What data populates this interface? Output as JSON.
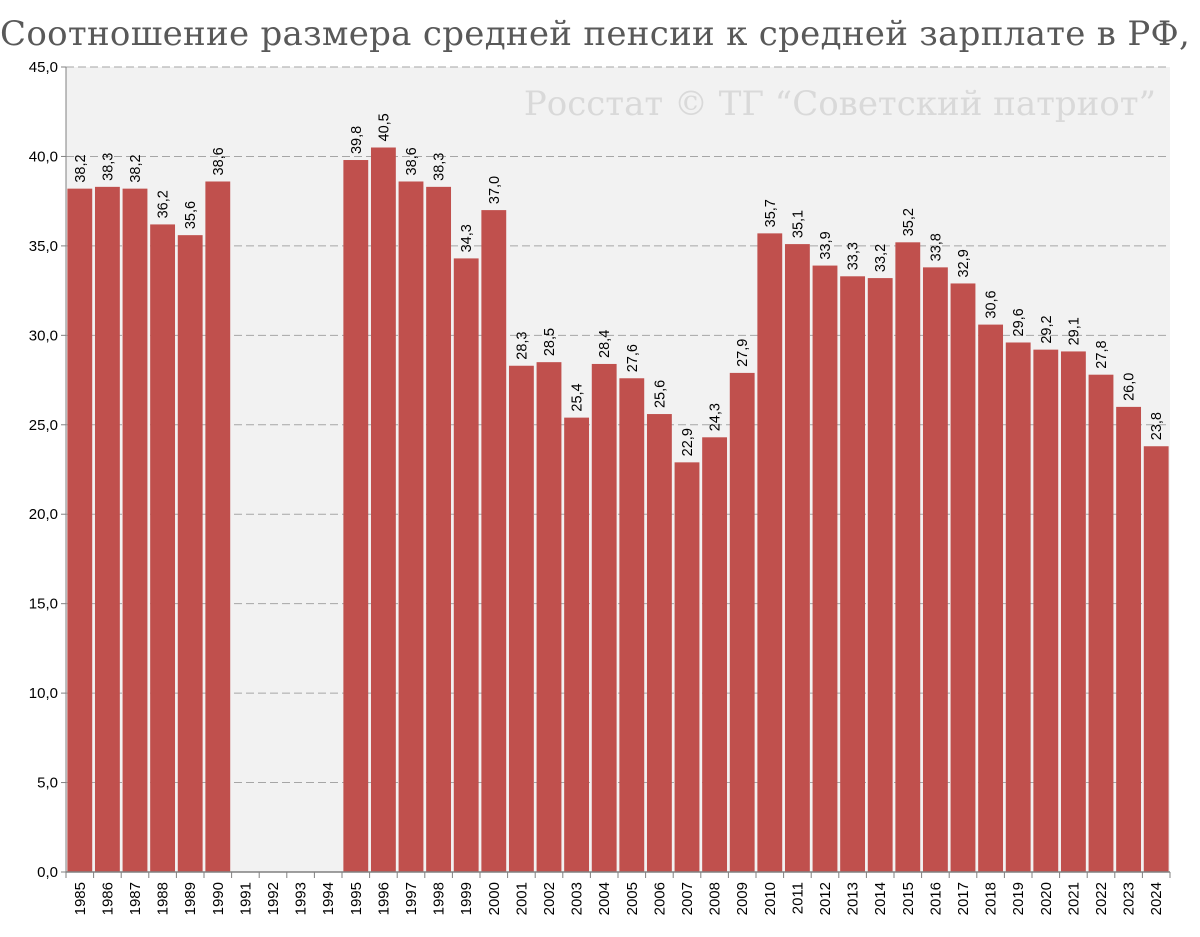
{
  "chart_data": {
    "type": "bar",
    "title": "Соотношение размера средней пенсии к средней зарплате в РФ, %",
    "watermark": "Росстат © ТГ “Советский патриот”",
    "categories": [
      "1985",
      "1986",
      "1987",
      "1988",
      "1989",
      "1990",
      "1991",
      "1992",
      "1993",
      "1994",
      "1995",
      "1996",
      "1997",
      "1998",
      "1999",
      "2000",
      "2001",
      "2002",
      "2003",
      "2004",
      "2005",
      "2006",
      "2007",
      "2008",
      "2009",
      "2010",
      "2011",
      "2012",
      "2013",
      "2014",
      "2015",
      "2016",
      "2017",
      "2018",
      "2019",
      "2020",
      "2021",
      "2022",
      "2023",
      "2024"
    ],
    "values": [
      38.2,
      38.3,
      38.2,
      36.2,
      35.6,
      38.6,
      null,
      null,
      null,
      null,
      39.8,
      40.5,
      38.6,
      38.3,
      34.3,
      37.0,
      28.3,
      28.5,
      25.4,
      28.4,
      27.6,
      25.6,
      22.9,
      24.3,
      27.9,
      35.7,
      35.1,
      33.9,
      33.3,
      33.2,
      35.2,
      33.8,
      32.9,
      30.6,
      29.6,
      29.2,
      29.1,
      27.8,
      26.0,
      23.8
    ],
    "data_labels": [
      "38,2",
      "38,3",
      "38,2",
      "36,2",
      "35,6",
      "38,6",
      "",
      "",
      "",
      "",
      "39,8",
      "40,5",
      "38,6",
      "38,3",
      "34,3",
      "37,0",
      "28,3",
      "28,5",
      "25,4",
      "28,4",
      "27,6",
      "25,6",
      "22,9",
      "24,3",
      "27,9",
      "35,7",
      "35,1",
      "33,9",
      "33,3",
      "33,2",
      "35,2",
      "33,8",
      "32,9",
      "30,6",
      "29,6",
      "29,2",
      "29,1",
      "27,8",
      "26,0",
      "23,8"
    ],
    "y_ticks": [
      0,
      5,
      10,
      15,
      20,
      25,
      30,
      35,
      40,
      45
    ],
    "y_tick_labels": [
      "0,0",
      "5,0",
      "10,0",
      "15,0",
      "20,0",
      "25,0",
      "30,0",
      "35,0",
      "40,0",
      "45,0"
    ],
    "ylim": [
      0,
      45
    ],
    "xlabel": "",
    "ylabel": "",
    "grid": true,
    "bar_color": "#c0504d",
    "plot_background": "#f2f2f2",
    "grid_color": "#a6a6a6"
  }
}
